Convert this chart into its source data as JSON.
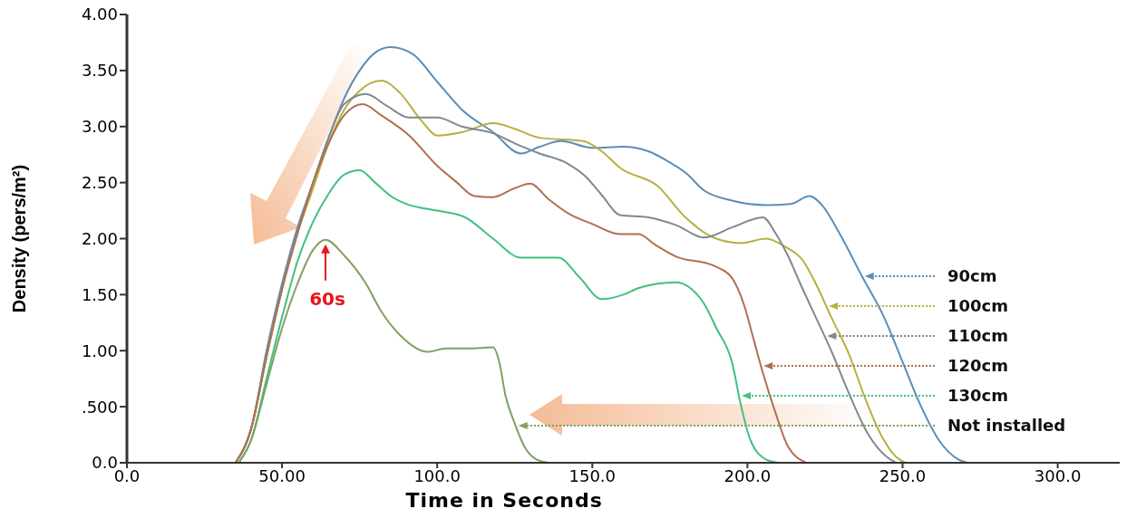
{
  "chart_data": {
    "type": "line",
    "xlabel": "Time in Seconds",
    "ylabel": "Density (pers/m²)",
    "xlim": [
      0,
      320
    ],
    "ylim": [
      0,
      4
    ],
    "xticks": [
      {
        "value": 0,
        "label": "0.0"
      },
      {
        "value": 50,
        "label": "50.00"
      },
      {
        "value": 100,
        "label": "100.0"
      },
      {
        "value": 150,
        "label": "150.0"
      },
      {
        "value": 200,
        "label": "200.0"
      },
      {
        "value": 250,
        "label": "250.0"
      },
      {
        "value": 300,
        "label": "300.0"
      }
    ],
    "yticks": [
      {
        "value": 0,
        "label": "0.0"
      },
      {
        "value": 0.5,
        "label": ".500"
      },
      {
        "value": 1,
        "label": "1.00"
      },
      {
        "value": 1.5,
        "label": "1.50"
      },
      {
        "value": 2,
        "label": "2.00"
      },
      {
        "value": 2.5,
        "label": "2.50"
      },
      {
        "value": 3,
        "label": "3.00"
      },
      {
        "value": 3.5,
        "label": "3.50"
      },
      {
        "value": 4,
        "label": "4.00"
      }
    ],
    "grid": false,
    "legend": "right",
    "marker": "none",
    "line_style": "solid",
    "annotations": [
      {
        "text": "60s",
        "x": 64,
        "y": 1.99
      }
    ],
    "series": [
      {
        "name": "90cm",
        "color": "#5b8db8",
        "x": [
          35,
          40,
          45,
          50,
          55,
          60,
          65,
          70,
          75,
          80,
          85,
          92,
          100,
          108,
          118,
          127,
          133,
          140,
          150,
          160,
          168,
          175,
          180,
          186,
          195,
          206,
          214,
          220,
          224,
          230,
          237,
          244,
          250,
          256,
          262,
          268,
          271
        ],
        "values": [
          0,
          0.3,
          1.0,
          1.6,
          2.1,
          2.5,
          2.9,
          3.25,
          3.5,
          3.66,
          3.71,
          3.65,
          3.4,
          3.15,
          2.95,
          2.76,
          2.82,
          2.87,
          2.81,
          2.82,
          2.78,
          2.68,
          2.59,
          2.43,
          2.34,
          2.3,
          2.31,
          2.38,
          2.3,
          2.03,
          1.66,
          1.3,
          0.9,
          0.5,
          0.19,
          0.03,
          0
        ]
      },
      {
        "name": "100cm",
        "color": "#b8b040",
        "x": [
          35,
          40,
          45,
          50,
          55,
          60,
          65,
          70,
          75,
          82,
          88,
          95,
          100,
          108,
          118,
          125,
          133,
          147,
          153,
          159,
          171,
          180,
          189,
          198,
          206,
          212,
          218,
          222,
          227,
          233,
          238,
          243,
          248,
          251
        ],
        "values": [
          0,
          0.3,
          0.95,
          1.55,
          2.05,
          2.45,
          2.85,
          3.15,
          3.32,
          3.41,
          3.3,
          3.05,
          2.92,
          2.95,
          3.03,
          2.98,
          2.9,
          2.87,
          2.78,
          2.63,
          2.47,
          2.19,
          2.01,
          1.96,
          2.0,
          1.93,
          1.8,
          1.6,
          1.3,
          0.95,
          0.57,
          0.25,
          0.05,
          0
        ]
      },
      {
        "name": "110cm",
        "color": "#808890",
        "x": [
          35,
          40,
          45,
          50,
          55,
          60,
          65,
          70,
          77,
          84,
          91,
          100,
          108,
          118,
          125,
          133,
          142,
          148,
          153,
          159,
          168,
          177,
          186,
          195,
          205,
          209,
          213,
          217,
          222,
          227,
          233,
          239,
          245,
          248
        ],
        "values": [
          0,
          0.3,
          0.95,
          1.55,
          2.05,
          2.5,
          2.9,
          3.2,
          3.29,
          3.18,
          3.08,
          3.08,
          3.0,
          2.94,
          2.85,
          2.76,
          2.67,
          2.55,
          2.39,
          2.21,
          2.19,
          2.12,
          2.01,
          2.1,
          2.19,
          2.05,
          1.85,
          1.6,
          1.3,
          1.0,
          0.6,
          0.25,
          0.05,
          0
        ]
      },
      {
        "name": "120cm",
        "color": "#b07050",
        "x": [
          35,
          40,
          45,
          50,
          55,
          60,
          65,
          70,
          76,
          82,
          91,
          100,
          106,
          112,
          118,
          125,
          130,
          136,
          142,
          150,
          159,
          165,
          170,
          177,
          189,
          195,
          199,
          202,
          205,
          209,
          213,
          219
        ],
        "values": [
          0,
          0.3,
          0.95,
          1.55,
          2.05,
          2.5,
          2.85,
          3.1,
          3.2,
          3.1,
          2.92,
          2.65,
          2.51,
          2.38,
          2.37,
          2.45,
          2.49,
          2.35,
          2.23,
          2.13,
          2.04,
          2.04,
          1.95,
          1.84,
          1.76,
          1.65,
          1.4,
          1.1,
          0.8,
          0.45,
          0.15,
          0
        ]
      },
      {
        "name": "130cm",
        "color": "#40c080",
        "x": [
          36,
          40,
          45,
          50,
          55,
          60,
          65,
          70,
          75,
          80,
          85,
          90,
          100,
          109,
          118,
          127,
          139,
          146,
          153,
          160,
          165,
          177,
          182,
          186,
          190,
          195,
          198,
          201,
          206,
          210
        ],
        "values": [
          0,
          0.2,
          0.75,
          1.3,
          1.8,
          2.15,
          2.4,
          2.57,
          2.61,
          2.5,
          2.38,
          2.31,
          2.25,
          2.19,
          2.0,
          1.83,
          1.83,
          1.65,
          1.46,
          1.5,
          1.56,
          1.61,
          1.55,
          1.42,
          1.2,
          0.9,
          0.5,
          0.2,
          0.03,
          0
        ]
      },
      {
        "name": "Not installed",
        "color": "#80a060",
        "x": [
          36,
          40,
          45,
          50,
          55,
          60,
          64,
          70,
          77,
          82,
          88,
          97,
          103,
          110,
          118,
          120,
          122,
          125,
          128,
          132,
          136
        ],
        "values": [
          0,
          0.2,
          0.7,
          1.2,
          1.6,
          1.9,
          1.99,
          1.85,
          1.6,
          1.35,
          1.14,
          0.99,
          1.02,
          1.02,
          1.03,
          0.9,
          0.6,
          0.35,
          0.15,
          0.03,
          0
        ]
      }
    ]
  }
}
